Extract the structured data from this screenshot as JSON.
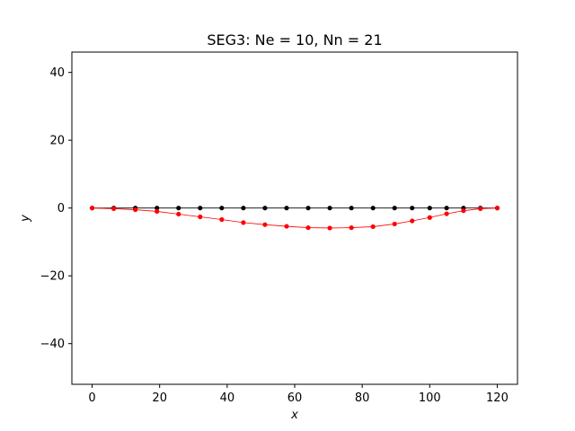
{
  "chart_data": {
    "type": "line",
    "title": "SEG3: Ne = 10, Nn = 21",
    "xlabel": "x",
    "ylabel": "y",
    "xlim": [
      -6,
      126
    ],
    "ylim": [
      -52,
      46
    ],
    "xticks": [
      0,
      20,
      40,
      60,
      80,
      100,
      120
    ],
    "xtick_labels": [
      "0",
      "20",
      "40",
      "60",
      "80",
      "100",
      "120"
    ],
    "yticks": [
      -40,
      -20,
      0,
      20,
      40
    ],
    "ytick_labels": [
      "−40",
      "−20",
      "0",
      "20",
      "40"
    ],
    "grid": false,
    "legend": "none",
    "series": [
      {
        "color": "#000000",
        "x": [
          0,
          6.4,
          12.8,
          19.2,
          25.6,
          32,
          38.4,
          44.8,
          51.2,
          57.6,
          64,
          70.4,
          76.8,
          83.2,
          89.6,
          94.8,
          100,
          105,
          110,
          115,
          120
        ],
        "y": [
          0,
          0,
          0,
          0,
          0,
          0,
          0,
          0,
          0,
          0,
          0,
          0,
          0,
          0,
          0,
          0,
          0,
          0,
          0,
          0,
          0
        ]
      },
      {
        "color": "#ff0000",
        "x": [
          0,
          6.4,
          12.8,
          19.2,
          25.6,
          32,
          38.4,
          44.8,
          51.2,
          57.6,
          64,
          70.4,
          76.8,
          83.2,
          89.6,
          94.8,
          100,
          105,
          110,
          115,
          120
        ],
        "y": [
          0,
          -0.2,
          -0.5,
          -1.0,
          -1.8,
          -2.6,
          -3.4,
          -4.3,
          -4.9,
          -5.4,
          -5.8,
          -5.9,
          -5.8,
          -5.5,
          -4.7,
          -3.8,
          -2.8,
          -1.7,
          -0.8,
          -0.2,
          0
        ]
      }
    ]
  }
}
